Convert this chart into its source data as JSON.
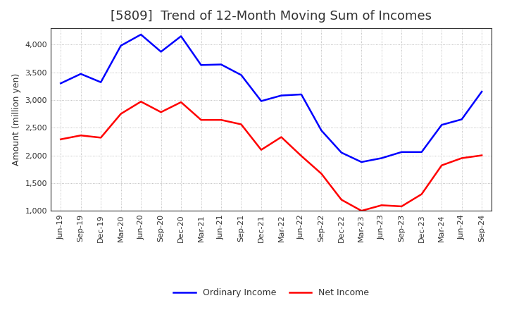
{
  "title": "[5809]  Trend of 12-Month Moving Sum of Incomes",
  "ylabel": "Amount (million yen)",
  "ylim": [
    1000,
    4300
  ],
  "yticks": [
    1000,
    1500,
    2000,
    2500,
    3000,
    3500,
    4000
  ],
  "x_labels": [
    "Jun-19",
    "Sep-19",
    "Dec-19",
    "Mar-20",
    "Jun-20",
    "Sep-20",
    "Dec-20",
    "Mar-21",
    "Jun-21",
    "Sep-21",
    "Dec-21",
    "Mar-22",
    "Jun-22",
    "Sep-22",
    "Dec-22",
    "Mar-23",
    "Jun-23",
    "Sep-23",
    "Dec-23",
    "Mar-24",
    "Jun-24",
    "Sep-24"
  ],
  "ordinary_income": [
    3300,
    3470,
    3320,
    3980,
    4180,
    3870,
    4150,
    3630,
    3640,
    3450,
    2980,
    3080,
    3100,
    2450,
    2050,
    1880,
    1950,
    2060,
    2060,
    2550,
    2650,
    3150
  ],
  "net_income": [
    2290,
    2360,
    2320,
    2750,
    2970,
    2780,
    2960,
    2640,
    2640,
    2560,
    2100,
    2330,
    1990,
    1670,
    1200,
    1000,
    1100,
    1080,
    1300,
    1820,
    1950,
    2000
  ],
  "ordinary_color": "#0000ff",
  "net_color": "#ff0000",
  "background_color": "#ffffff",
  "grid_color": "#999999",
  "line_width": 1.8,
  "title_fontsize": 13,
  "title_color": "#333333",
  "legend_labels": [
    "Ordinary Income",
    "Net Income"
  ],
  "tick_fontsize": 8,
  "ylabel_fontsize": 9
}
